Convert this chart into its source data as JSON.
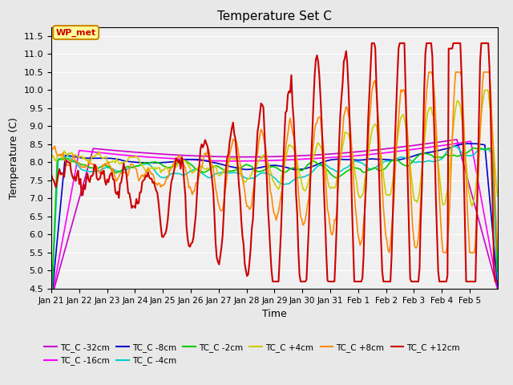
{
  "title": "Temperature Set C",
  "xlabel": "Time",
  "ylabel": "Temperature (C)",
  "ylim": [
    4.5,
    11.75
  ],
  "yticks": [
    4.5,
    5.0,
    5.5,
    6.0,
    6.5,
    7.0,
    7.5,
    8.0,
    8.5,
    9.0,
    9.5,
    10.0,
    10.5,
    11.0,
    11.5
  ],
  "x_labels": [
    "Jan 21",
    "Jan 22",
    "Jan 23",
    "Jan 24",
    "Jan 25",
    "Jan 26",
    "Jan 27",
    "Jan 28",
    "Jan 29",
    "Jan 30",
    "Jan 31",
    "Feb 1",
    "Feb 2",
    "Feb 3",
    "Feb 4",
    "Feb 5"
  ],
  "legend_label": "WP_met",
  "legend_box_color": "#ffff99",
  "legend_box_border": "#cc8800",
  "series": {
    "TC_C -32cm": {
      "color": "#cc00cc",
      "lw": 1.2
    },
    "TC_C -16cm": {
      "color": "#ff00ff",
      "lw": 1.2
    },
    "TC_C -8cm": {
      "color": "#0000cc",
      "lw": 1.2
    },
    "TC_C -4cm": {
      "color": "#00cccc",
      "lw": 1.2
    },
    "TC_C -2cm": {
      "color": "#00cc00",
      "lw": 1.2
    },
    "TC_C +4cm": {
      "color": "#cccc00",
      "lw": 1.2
    },
    "TC_C +8cm": {
      "color": "#ff8800",
      "lw": 1.2
    },
    "TC_C +12cm": {
      "color": "#cc0000",
      "lw": 1.5
    }
  },
  "background_color": "#e8e8e8",
  "plot_bg_color": "#f0f0f0"
}
